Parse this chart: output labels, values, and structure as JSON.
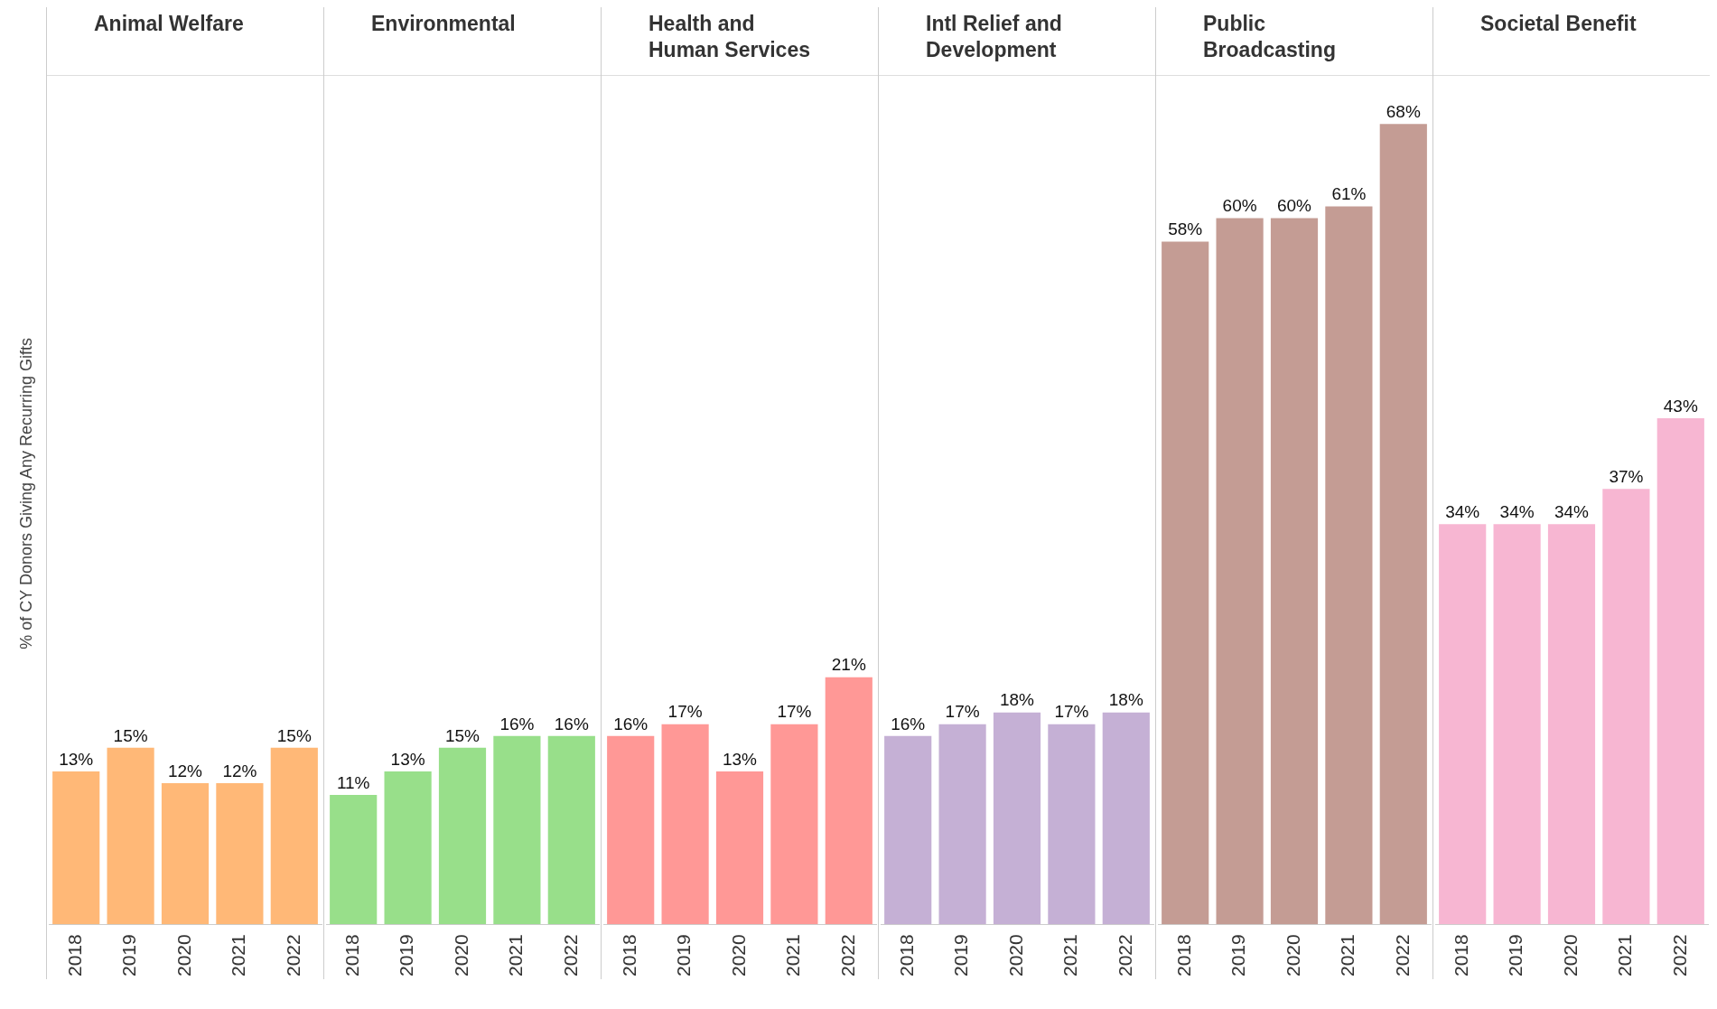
{
  "chart_data": [
    {
      "type": "bar",
      "title": "Animal Welfare",
      "ylabel": "% of CY Donors Giving Any Recurring Gifts",
      "categories": [
        "2018",
        "2019",
        "2020",
        "2021",
        "2022"
      ],
      "values": [
        13,
        15,
        12,
        12,
        15
      ],
      "value_labels": [
        "13%",
        "15%",
        "12%",
        "12%",
        "15%"
      ],
      "color": "#ffb877",
      "grid": false,
      "legend": false
    },
    {
      "type": "bar",
      "title": "Environmental",
      "categories": [
        "2018",
        "2019",
        "2020",
        "2021",
        "2022"
      ],
      "values": [
        11,
        13,
        15,
        16,
        16
      ],
      "value_labels": [
        "11%",
        "13%",
        "15%",
        "16%",
        "16%"
      ],
      "color": "#98df8a",
      "grid": false,
      "legend": false
    },
    {
      "type": "bar",
      "title": "Health and Human Services",
      "categories": [
        "2018",
        "2019",
        "2020",
        "2021",
        "2022"
      ],
      "values": [
        16,
        17,
        13,
        17,
        21
      ],
      "value_labels": [
        "16%",
        "17%",
        "13%",
        "17%",
        "21%"
      ],
      "color": "#ff9896",
      "grid": false,
      "legend": false
    },
    {
      "type": "bar",
      "title": "Intl Relief and Development",
      "categories": [
        "2018",
        "2019",
        "2020",
        "2021",
        "2022"
      ],
      "values": [
        16,
        17,
        18,
        17,
        18
      ],
      "value_labels": [
        "16%",
        "17%",
        "18%",
        "17%",
        "18%"
      ],
      "color": "#c5b0d5",
      "grid": false,
      "legend": false
    },
    {
      "type": "bar",
      "title": "Public Broadcasting",
      "categories": [
        "2018",
        "2019",
        "2020",
        "2021",
        "2022"
      ],
      "values": [
        58,
        60,
        60,
        61,
        68
      ],
      "value_labels": [
        "58%",
        "60%",
        "60%",
        "61%",
        "68%"
      ],
      "color": "#c49c94",
      "grid": false,
      "legend": false
    },
    {
      "type": "bar",
      "title": "Societal Benefit",
      "categories": [
        "2018",
        "2019",
        "2020",
        "2021",
        "2022"
      ],
      "values": [
        34,
        34,
        34,
        37,
        43
      ],
      "value_labels": [
        "34%",
        "34%",
        "34%",
        "37%",
        "43%"
      ],
      "color": "#f7b6d2",
      "grid": false,
      "legend": false
    }
  ]
}
